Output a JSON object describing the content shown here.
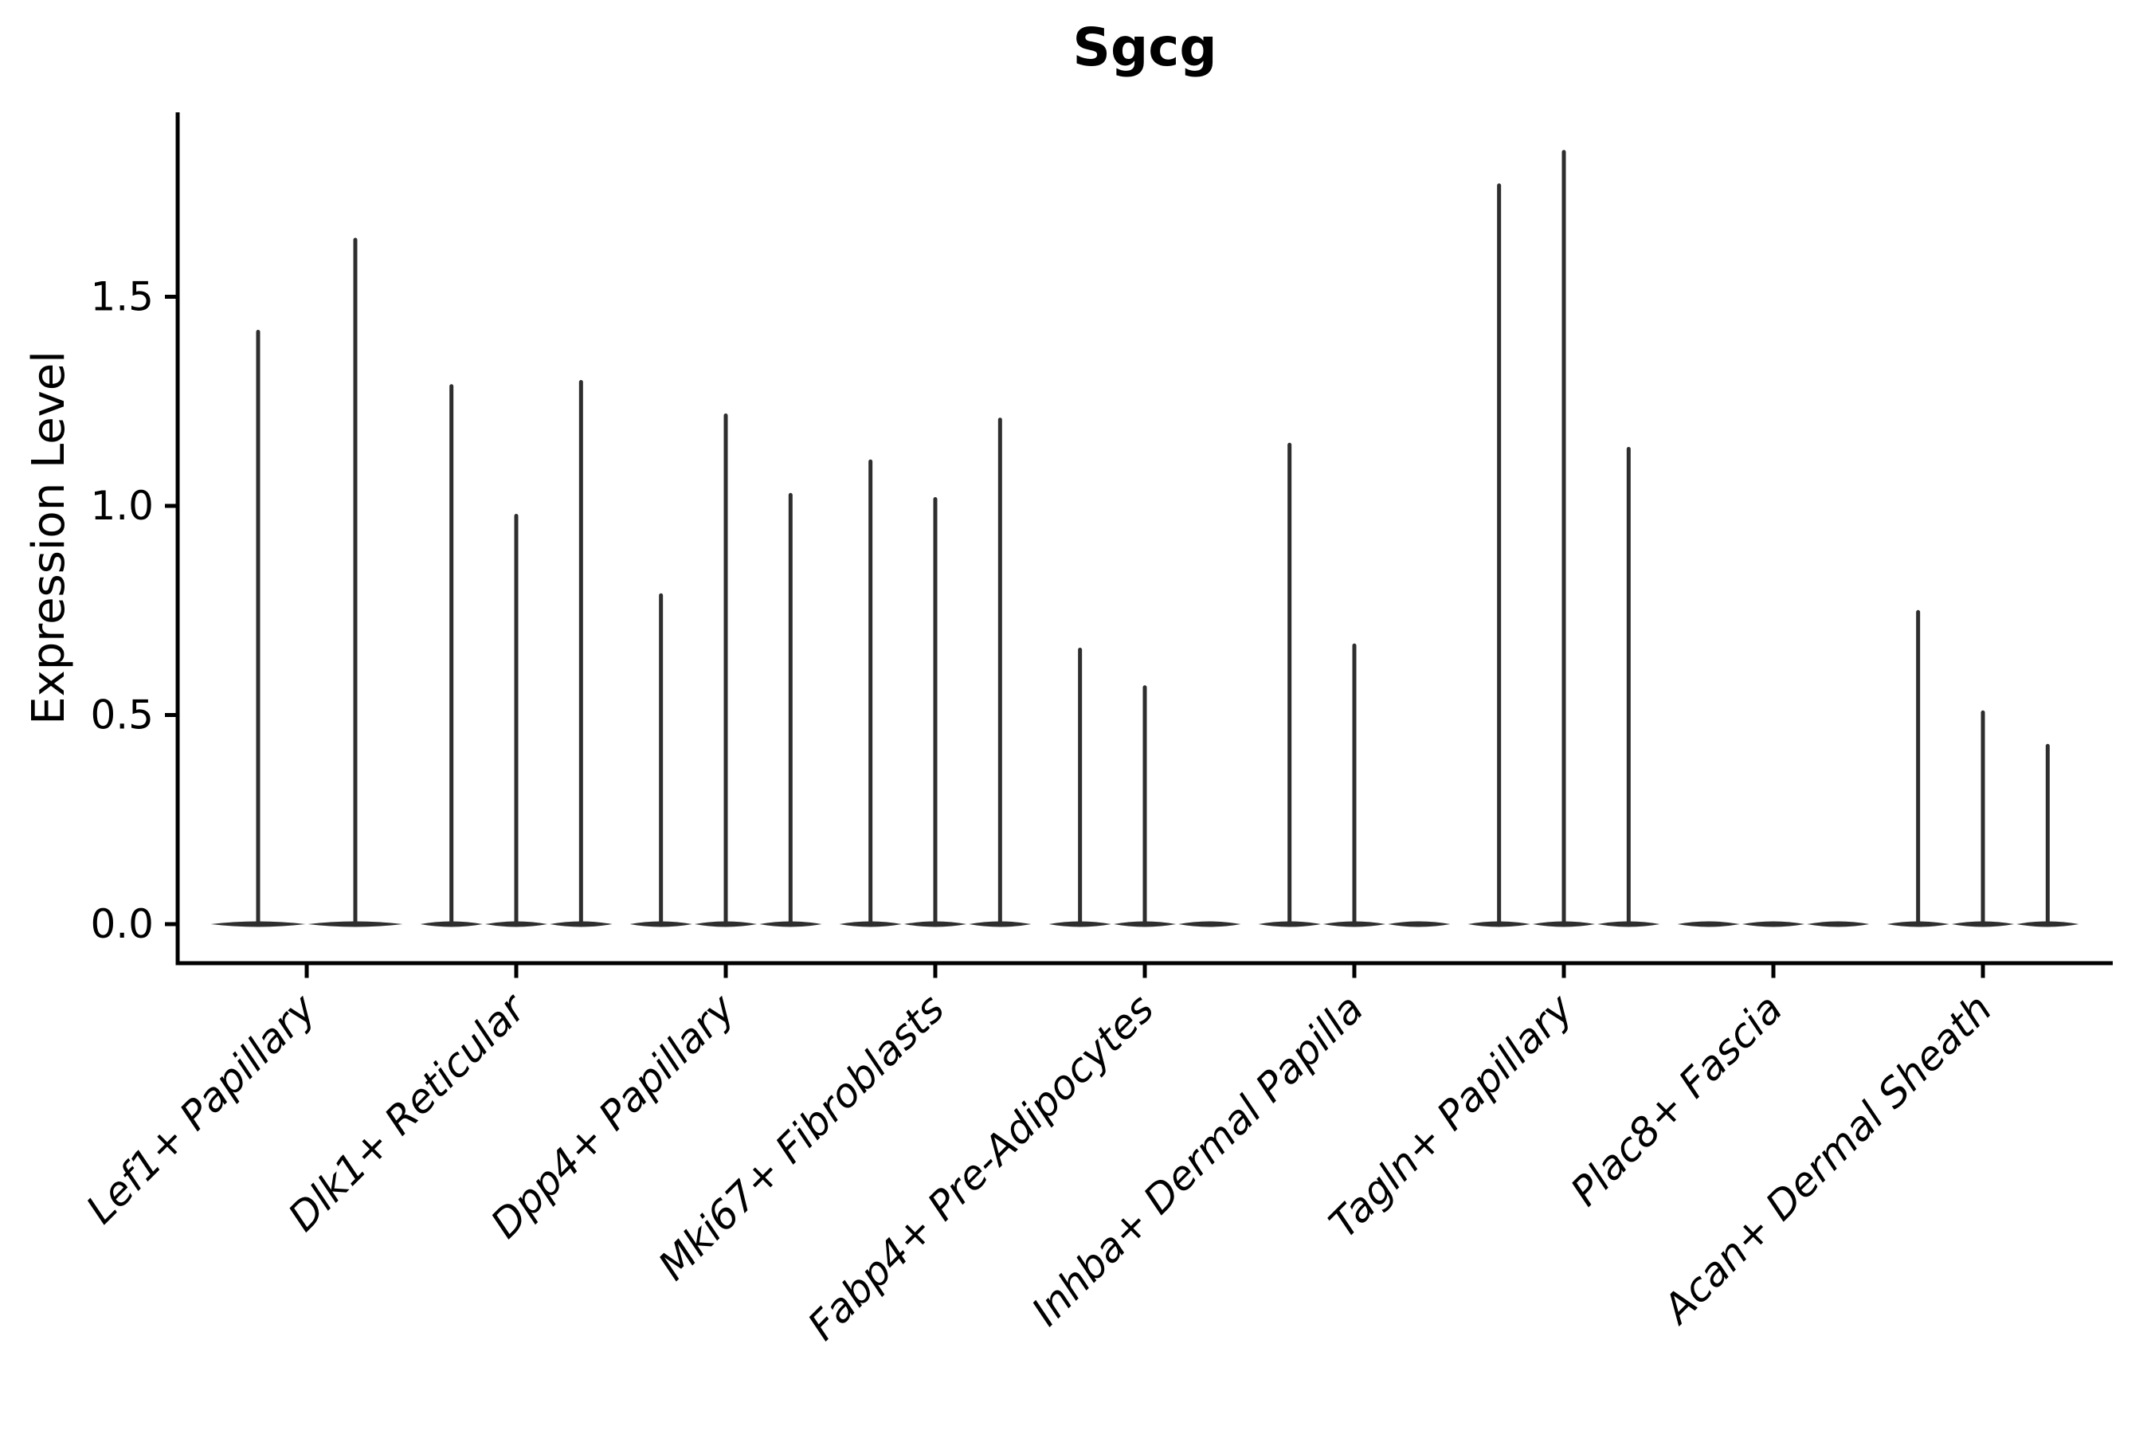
{
  "figure": {
    "title": "Sgcg",
    "background_color": "#ffffff"
  },
  "chart_data": {
    "type": "violin",
    "title": "Sgcg",
    "xlabel": "",
    "ylabel": "Expression Level",
    "grid": false,
    "legend": "none",
    "ylim": [
      -0.09,
      1.94
    ],
    "yticks": [
      "0.0",
      "0.5",
      "1.0",
      "1.5"
    ],
    "ytick_values": [
      0.0,
      0.5,
      1.0,
      1.5
    ],
    "categories": [
      "Lef1+ Papillary",
      "Dlk1+ Reticular",
      "Dpp4+ Papillary",
      "Mki67+ Fibroblasts",
      "Fabp4+ Pre-Adipocytes",
      "Inhba+ Dermal Papilla",
      "Tagln+ Papillary",
      "Plac8+ Fascia",
      "Acan+ Dermal Sheath"
    ],
    "series": [
      {
        "category": "Lef1+ Papillary",
        "violin_max_expression": [
          1.42,
          1.64
        ]
      },
      {
        "category": "Dlk1+ Reticular",
        "violin_max_expression": [
          1.29,
          0.98,
          1.3
        ]
      },
      {
        "category": "Dpp4+ Papillary",
        "violin_max_expression": [
          0.79,
          1.22,
          1.03
        ]
      },
      {
        "category": "Mki67+ Fibroblasts",
        "violin_max_expression": [
          1.11,
          1.02,
          1.21
        ]
      },
      {
        "category": "Fabp4+ Pre-Adipocytes",
        "violin_max_expression": [
          0.66,
          0.57,
          0.0
        ]
      },
      {
        "category": "Inhba+ Dermal Papilla",
        "violin_max_expression": [
          1.15,
          0.67,
          0.0
        ]
      },
      {
        "category": "Tagln+ Papillary",
        "violin_max_expression": [
          1.77,
          1.85,
          1.14
        ]
      },
      {
        "category": "Plac8+ Fascia",
        "violin_max_expression": [
          0.0,
          0.0,
          0.0
        ]
      },
      {
        "category": "Acan+ Dermal Sheath",
        "violin_max_expression": [
          0.75,
          0.51,
          0.43
        ]
      }
    ],
    "colors": {
      "violin": "#2e2e2e",
      "axis": "#000000",
      "text": "#000000",
      "background": "#ffffff"
    },
    "style_notes": {
      "violin_shape": "needle-thin violins with flat lens-shaped base at zero",
      "xtick_label_rotation_deg": 45,
      "xtick_label_style": "italic",
      "spines": "left and bottom only"
    }
  }
}
